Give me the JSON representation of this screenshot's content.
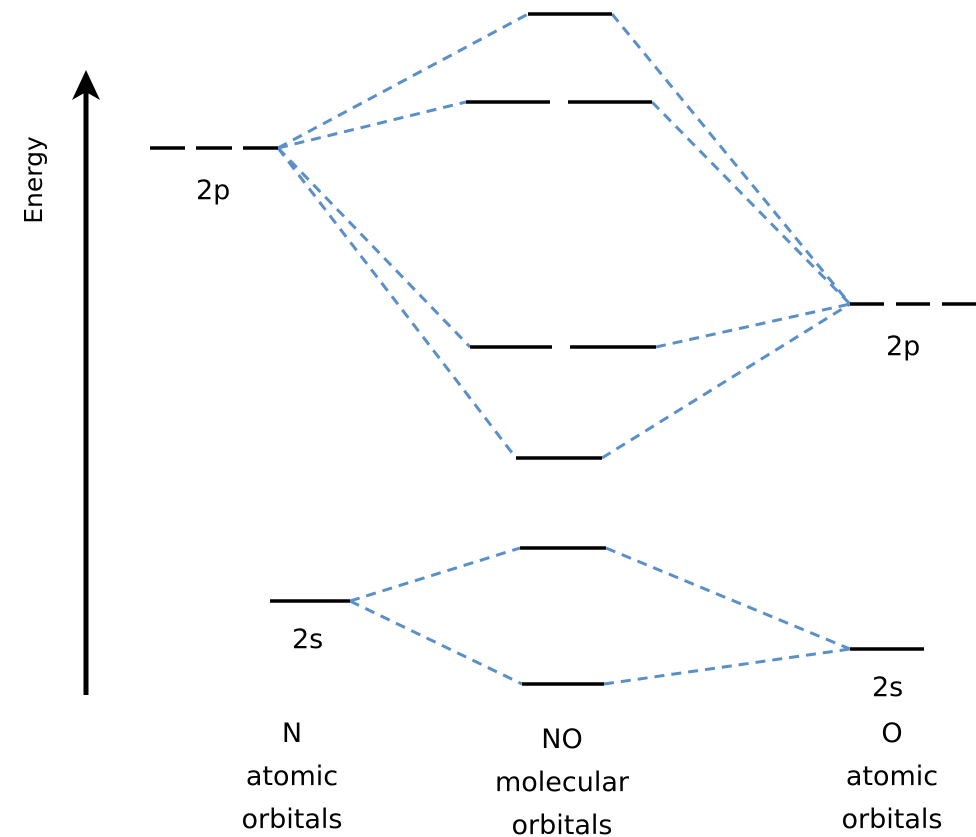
{
  "axis": {
    "label": "Energy"
  },
  "n_atom": {
    "orbital_2p": "2p",
    "orbital_2s": "2s",
    "heading": [
      "N",
      "atomic",
      "orbitals"
    ]
  },
  "no_molecule": {
    "heading": [
      "NO",
      "molecular",
      "orbitals"
    ]
  },
  "o_atom": {
    "orbital_2p": "2p",
    "orbital_2s": "2s",
    "heading": [
      "O",
      "atomic",
      "orbitals"
    ]
  },
  "colors": {
    "correlation_line": "#5a8fc8",
    "level": "#000000"
  }
}
